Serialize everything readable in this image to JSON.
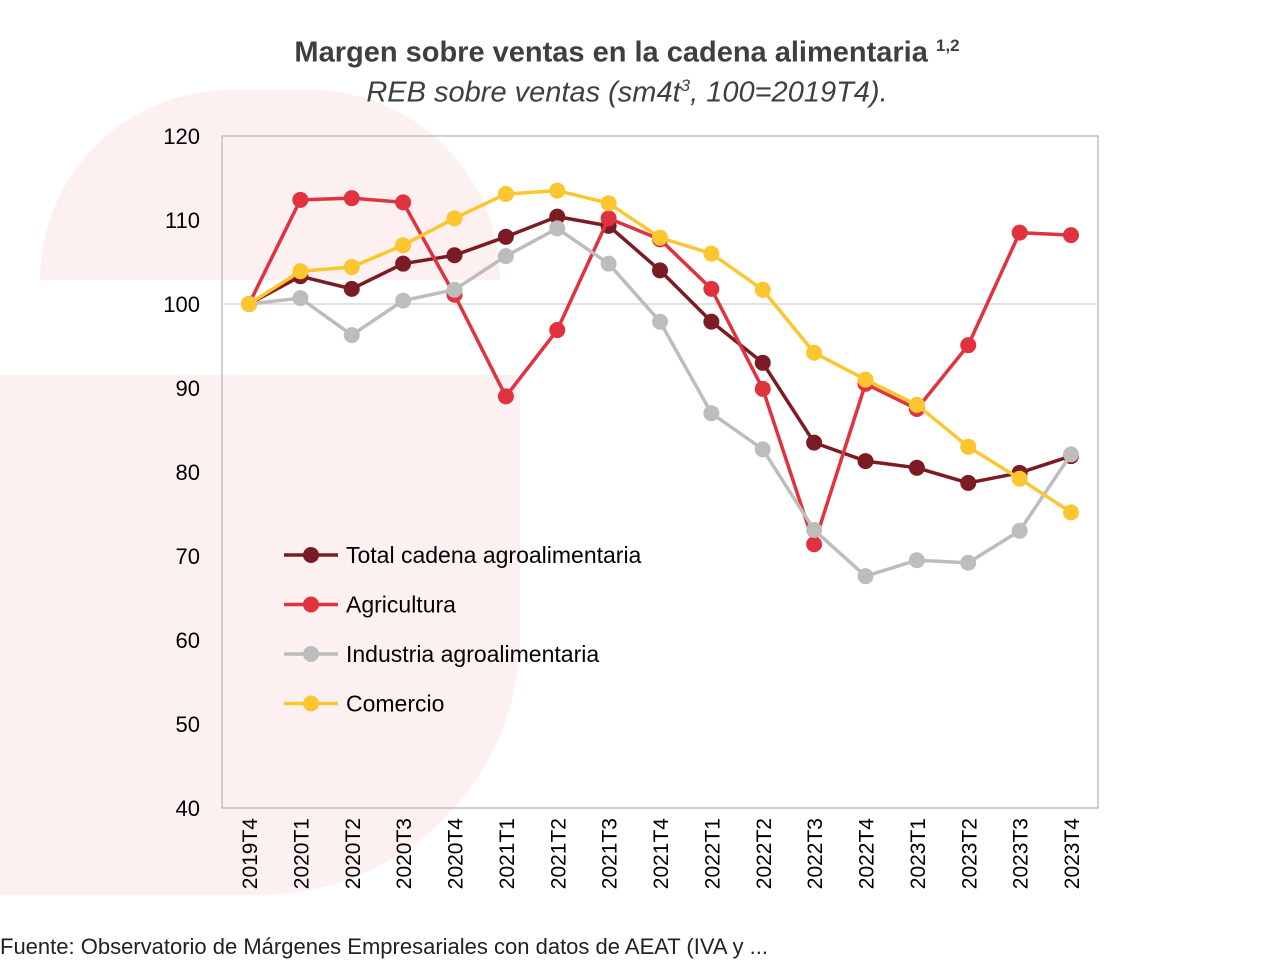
{
  "chart_data": {
    "type": "line",
    "title": "Margen sobre ventas en la cadena alimentaria",
    "title_superscript": "1,2",
    "subtitle_pre": "REB sobre ventas (sm4t",
    "subtitle_sup": "3",
    "subtitle_post": ", 100=2019T4).",
    "categories": [
      "2019T4",
      "2020T1",
      "2020T2",
      "2020T3",
      "2020T4",
      "2021T1",
      "2021T2",
      "2021T3",
      "2021T4",
      "2022T1",
      "2022T2",
      "2022T3",
      "2022T4",
      "2023T1",
      "2023T2",
      "2023T3",
      "2023T4"
    ],
    "ylim": [
      40,
      120
    ],
    "yticks": [
      40,
      50,
      60,
      70,
      80,
      90,
      100,
      110,
      120
    ],
    "reference_line": 100,
    "legend_placement": "bottom-left inside",
    "series": [
      {
        "name": "Total cadena agroalimentaria",
        "color": "#7b1c24",
        "values": [
          100,
          103.3,
          101.8,
          104.8,
          105.8,
          108.0,
          110.4,
          109.3,
          104.0,
          97.9,
          93.0,
          83.5,
          81.3,
          80.5,
          78.7,
          79.9,
          81.9
        ]
      },
      {
        "name": "Agricultura",
        "color": "#e0323f",
        "values": [
          100,
          112.4,
          112.6,
          112.1,
          101.1,
          89.0,
          96.9,
          110.2,
          107.7,
          101.8,
          89.9,
          71.4,
          90.5,
          87.5,
          95.1,
          108.5,
          108.2
        ]
      },
      {
        "name": "Industria agroalimentaria",
        "color": "#bdbdbd",
        "values": [
          100,
          100.7,
          96.3,
          100.4,
          101.7,
          105.7,
          109.0,
          104.8,
          97.9,
          87.0,
          82.7,
          73.1,
          67.6,
          69.5,
          69.2,
          73.0,
          82.1
        ]
      },
      {
        "name": "Comercio",
        "color": "#fbc62f",
        "values": [
          100,
          103.9,
          104.4,
          107.0,
          110.2,
          113.1,
          113.5,
          112.0,
          107.9,
          106.0,
          101.7,
          94.2,
          91.0,
          88.0,
          83.0,
          79.2,
          75.2
        ]
      }
    ]
  },
  "source": "Fuente: Observatorio de Márgenes Empresariales con datos de AEAT (IVA y ..."
}
